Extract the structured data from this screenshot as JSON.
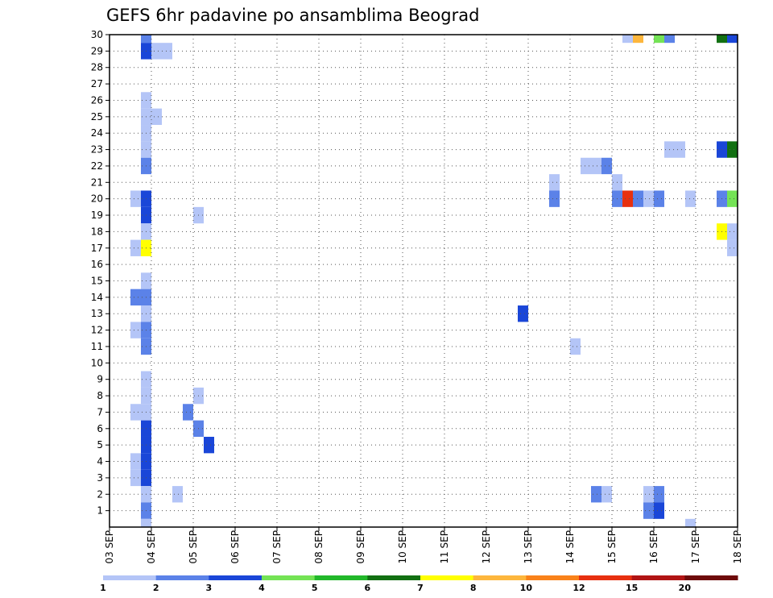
{
  "chart_data": {
    "type": "heatmap",
    "title": "GEFS 6hr padavine po ansamblima Beograd",
    "xlabel": "",
    "ylabel": "",
    "x_tick_labels": [
      "03 SEP",
      "04 SEP",
      "05 SEP",
      "06 SEP",
      "07 SEP",
      "08 SEP",
      "09 SEP",
      "10 SEP",
      "11 SEP",
      "12 SEP",
      "13 SEP",
      "14 SEP",
      "15 SEP",
      "16 SEP",
      "17 SEP",
      "18 SEP"
    ],
    "y_tick_labels": [
      "1",
      "2",
      "3",
      "4",
      "5",
      "6",
      "7",
      "8",
      "9",
      "10",
      "11",
      "12",
      "13",
      "14",
      "15",
      "16",
      "17",
      "18",
      "19",
      "20",
      "21",
      "22",
      "23",
      "24",
      "25",
      "26",
      "27",
      "28",
      "29",
      "30"
    ],
    "xlim_days": [
      3,
      18
    ],
    "ylim": [
      0,
      30
    ],
    "grid": true,
    "legend": {
      "placement": "bottom",
      "labels": [
        "1",
        "2",
        "3",
        "4",
        "5",
        "6",
        "7",
        "8",
        "10",
        "12",
        "15",
        "20"
      ],
      "colors": [
        "#b4c5f7",
        "#5b82e8",
        "#1a46d8",
        "#74e355",
        "#22b82a",
        "#127012",
        "#ffff00",
        "#fdb63c",
        "#f9821a",
        "#e73010",
        "#b11414",
        "#6e0a0a"
      ]
    },
    "cells": [
      {
        "member": 30,
        "day": 4.0,
        "cls": 1
      },
      {
        "member": 30,
        "day": 15.5,
        "cls": 0
      },
      {
        "member": 30,
        "day": 15.75,
        "cls": 7
      },
      {
        "member": 30,
        "day": 16.25,
        "cls": 3
      },
      {
        "member": 30,
        "day": 16.5,
        "cls": 1
      },
      {
        "member": 30,
        "day": 17.75,
        "cls": 5
      },
      {
        "member": 30,
        "day": 18.0,
        "cls": 2
      },
      {
        "member": 29,
        "day": 4.0,
        "cls": 2
      },
      {
        "member": 29,
        "day": 4.25,
        "cls": 0
      },
      {
        "member": 29,
        "day": 4.5,
        "cls": 0
      },
      {
        "member": 26,
        "day": 4.0,
        "cls": 0
      },
      {
        "member": 25,
        "day": 4.0,
        "cls": 0
      },
      {
        "member": 25,
        "day": 4.25,
        "cls": 0
      },
      {
        "member": 24,
        "day": 4.0,
        "cls": 0
      },
      {
        "member": 23,
        "day": 4.0,
        "cls": 0
      },
      {
        "member": 23,
        "day": 16.5,
        "cls": 0
      },
      {
        "member": 23,
        "day": 16.75,
        "cls": 0
      },
      {
        "member": 23,
        "day": 17.75,
        "cls": 2
      },
      {
        "member": 23,
        "day": 18.0,
        "cls": 5
      },
      {
        "member": 22,
        "day": 4.0,
        "cls": 1
      },
      {
        "member": 22,
        "day": 14.5,
        "cls": 0
      },
      {
        "member": 22,
        "day": 14.75,
        "cls": 0
      },
      {
        "member": 22,
        "day": 15.0,
        "cls": 1
      },
      {
        "member": 21,
        "day": 13.75,
        "cls": 0
      },
      {
        "member": 21,
        "day": 15.25,
        "cls": 0
      },
      {
        "member": 20,
        "day": 3.75,
        "cls": 0
      },
      {
        "member": 20,
        "day": 4.0,
        "cls": 2
      },
      {
        "member": 20,
        "day": 13.75,
        "cls": 1
      },
      {
        "member": 20,
        "day": 15.25,
        "cls": 1
      },
      {
        "member": 20,
        "day": 15.5,
        "cls": 9
      },
      {
        "member": 20,
        "day": 15.75,
        "cls": 1
      },
      {
        "member": 20,
        "day": 16.0,
        "cls": 0
      },
      {
        "member": 20,
        "day": 16.25,
        "cls": 1
      },
      {
        "member": 20,
        "day": 17.0,
        "cls": 0
      },
      {
        "member": 20,
        "day": 17.75,
        "cls": 1
      },
      {
        "member": 20,
        "day": 18.0,
        "cls": 3
      },
      {
        "member": 19,
        "day": 4.0,
        "cls": 2
      },
      {
        "member": 19,
        "day": 5.25,
        "cls": 0
      },
      {
        "member": 18,
        "day": 4.0,
        "cls": 0
      },
      {
        "member": 18,
        "day": 17.75,
        "cls": 6
      },
      {
        "member": 18,
        "day": 18.0,
        "cls": 0
      },
      {
        "member": 17,
        "day": 3.75,
        "cls": 0
      },
      {
        "member": 17,
        "day": 4.0,
        "cls": 6
      },
      {
        "member": 17,
        "day": 18.0,
        "cls": 0
      },
      {
        "member": 15,
        "day": 4.0,
        "cls": 0
      },
      {
        "member": 14,
        "day": 3.75,
        "cls": 1
      },
      {
        "member": 14,
        "day": 4.0,
        "cls": 1
      },
      {
        "member": 13,
        "day": 4.0,
        "cls": 0
      },
      {
        "member": 13,
        "day": 13.0,
        "cls": 2
      },
      {
        "member": 12,
        "day": 3.75,
        "cls": 0
      },
      {
        "member": 12,
        "day": 4.0,
        "cls": 1
      },
      {
        "member": 11,
        "day": 4.0,
        "cls": 1
      },
      {
        "member": 11,
        "day": 14.25,
        "cls": 0
      },
      {
        "member": 9,
        "day": 4.0,
        "cls": 0
      },
      {
        "member": 8,
        "day": 4.0,
        "cls": 0
      },
      {
        "member": 8,
        "day": 5.25,
        "cls": 0
      },
      {
        "member": 7,
        "day": 3.75,
        "cls": 0
      },
      {
        "member": 7,
        "day": 4.0,
        "cls": 0
      },
      {
        "member": 7,
        "day": 5.0,
        "cls": 1
      },
      {
        "member": 6,
        "day": 4.0,
        "cls": 2
      },
      {
        "member": 6,
        "day": 5.25,
        "cls": 1
      },
      {
        "member": 5,
        "day": 4.0,
        "cls": 2
      },
      {
        "member": 5,
        "day": 5.5,
        "cls": 2
      },
      {
        "member": 4,
        "day": 3.75,
        "cls": 0
      },
      {
        "member": 4,
        "day": 4.0,
        "cls": 2
      },
      {
        "member": 3,
        "day": 3.75,
        "cls": 0
      },
      {
        "member": 3,
        "day": 4.0,
        "cls": 2
      },
      {
        "member": 2,
        "day": 4.0,
        "cls": 0
      },
      {
        "member": 2,
        "day": 4.75,
        "cls": 0
      },
      {
        "member": 2,
        "day": 14.75,
        "cls": 1
      },
      {
        "member": 2,
        "day": 15.0,
        "cls": 0
      },
      {
        "member": 2,
        "day": 16.0,
        "cls": 0
      },
      {
        "member": 2,
        "day": 16.25,
        "cls": 1
      },
      {
        "member": 1,
        "day": 4.0,
        "cls": 1
      },
      {
        "member": 1,
        "day": 16.0,
        "cls": 1
      },
      {
        "member": 1,
        "day": 16.25,
        "cls": 2
      },
      {
        "member": 0,
        "day": 4.0,
        "cls": 0
      },
      {
        "member": 0,
        "day": 17.0,
        "cls": 0
      }
    ]
  }
}
